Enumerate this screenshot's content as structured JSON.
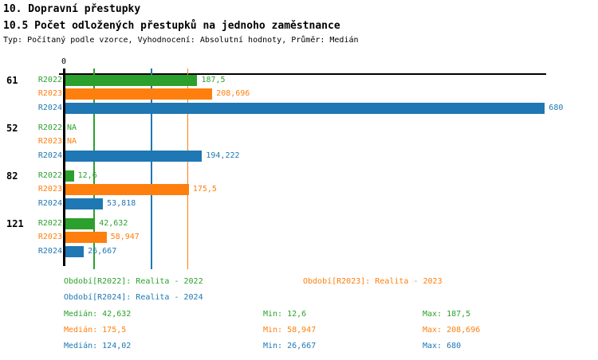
{
  "header": {
    "title": "10. Dopravní přestupky",
    "subtitle": "10.5 Počet odložených přestupků na jednoho zaměstnance",
    "meta": "Typ: Počítaný podle vzorce, Vyhodnocení: Absolutní hodnoty, Průměr: Medián"
  },
  "colors": {
    "r2022_green": "#2ca02c",
    "r2023_orange": "#ff7f0e",
    "r2024_blue": "#1f77b4",
    "axis_black": "#000000"
  },
  "chart_data": {
    "type": "bar",
    "orientation": "horizontal",
    "title": "10.5 Počet odložených přestupků na jednoho zaměstnance",
    "axis_zero_label": "0",
    "xlim": [
      0,
      680
    ],
    "categories": [
      "61",
      "52",
      "82",
      "121"
    ],
    "series": [
      {
        "name": "R2022",
        "color": "#2ca02c",
        "values": [
          187.5,
          null,
          12.6,
          42.632
        ],
        "labels": [
          "187,5",
          "NA",
          "12,6",
          "42,632"
        ]
      },
      {
        "name": "R2023",
        "color": "#ff7f0e",
        "values": [
          208.696,
          null,
          175.5,
          58.947
        ],
        "labels": [
          "208,696",
          "NA",
          "175,5",
          "58,947"
        ]
      },
      {
        "name": "R2024",
        "color": "#1f77b4",
        "values": [
          680,
          194.222,
          53.818,
          26.667
        ],
        "labels": [
          "680",
          "194,222",
          "53,818",
          "26,667"
        ]
      }
    ],
    "gridlines": [
      {
        "series": "R2022",
        "value": 42.632,
        "color": "#2ca02c"
      },
      {
        "series": "R2024",
        "value": 124.02,
        "color": "#1f77b4"
      },
      {
        "series": "R2023",
        "value": 175.5,
        "color": "#ff7f0e"
      }
    ]
  },
  "legend": {
    "entries": [
      {
        "label": "Období[R2022]: Realita - 2022",
        "color": "#2ca02c"
      },
      {
        "label": "Období[R2023]: Realita - 2023",
        "color": "#ff7f0e"
      },
      {
        "label": "Období[R2024]: Realita - 2024",
        "color": "#1f77b4"
      }
    ],
    "stats": [
      {
        "color": "#2ca02c",
        "median": "Medián: 42,632",
        "min": "Min: 12,6",
        "max": "Max: 187,5"
      },
      {
        "color": "#ff7f0e",
        "median": "Medián: 175,5",
        "min": "Min: 58,947",
        "max": "Max: 208,696"
      },
      {
        "color": "#1f77b4",
        "median": "Medián: 124,02",
        "min": "Min: 26,667",
        "max": "Max: 680"
      }
    ]
  }
}
